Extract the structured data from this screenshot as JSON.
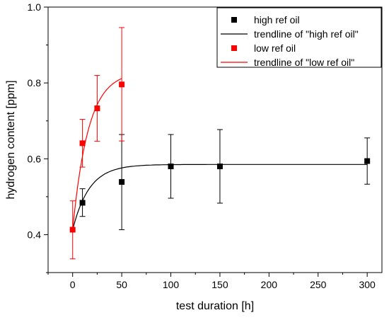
{
  "chart_data": {
    "type": "scatter",
    "xlabel": "test duration [h]",
    "ylabel": "hydrogen content [ppm]",
    "xlim": [
      -25,
      315
    ],
    "ylim": [
      0.3,
      1.0
    ],
    "xticks": [
      0,
      50,
      100,
      150,
      200,
      250,
      300
    ],
    "yticks": [
      0.4,
      0.6,
      0.8,
      1.0
    ],
    "ytick_labels": [
      "0.4",
      "0.6",
      "0.8",
      "1.0"
    ],
    "grid": false,
    "legend_position": "top-right",
    "legend": [
      {
        "label": "high ref oil",
        "kind": "marker",
        "color": "#000000"
      },
      {
        "label": "trendline of \"high ref oil\"",
        "kind": "line",
        "color": "#000000"
      },
      {
        "label": "low ref oil",
        "kind": "marker",
        "color": "#ff0000"
      },
      {
        "label": "trendline of \"low ref  oil\"",
        "kind": "line",
        "color": "#ff0000"
      }
    ],
    "series": [
      {
        "name": "high ref oil",
        "color": "#000000",
        "marker": "square",
        "x": [
          10,
          50,
          100,
          150,
          300
        ],
        "y": [
          0.484,
          0.539,
          0.58,
          0.58,
          0.594
        ],
        "err_low": [
          0.448,
          0.413,
          0.496,
          0.483,
          0.533
        ],
        "err_high": [
          0.521,
          0.664,
          0.664,
          0.677,
          0.655
        ]
      },
      {
        "name": "low ref oil",
        "color": "#ff0000",
        "marker": "square",
        "x": [
          0,
          10,
          25,
          50
        ],
        "y": [
          0.413,
          0.641,
          0.733,
          0.796
        ],
        "err_low": [
          0.336,
          0.578,
          0.646,
          0.647
        ],
        "err_high": [
          0.489,
          0.704,
          0.82,
          0.946
        ]
      }
    ],
    "trendlines": [
      {
        "name": "trendline of \"high ref oil\"",
        "color": "#000000",
        "model": "exponential-rise",
        "x_range": [
          0,
          300
        ],
        "y0": 0.413,
        "y_max": 0.585,
        "tau_h": 17
      },
      {
        "name": "trendline of \"low ref  oil\"",
        "color": "#ff0000",
        "model": "exponential-rise",
        "x_range": [
          0,
          50
        ],
        "y0": 0.413,
        "y_max": 0.83,
        "tau_h": 16
      }
    ]
  }
}
